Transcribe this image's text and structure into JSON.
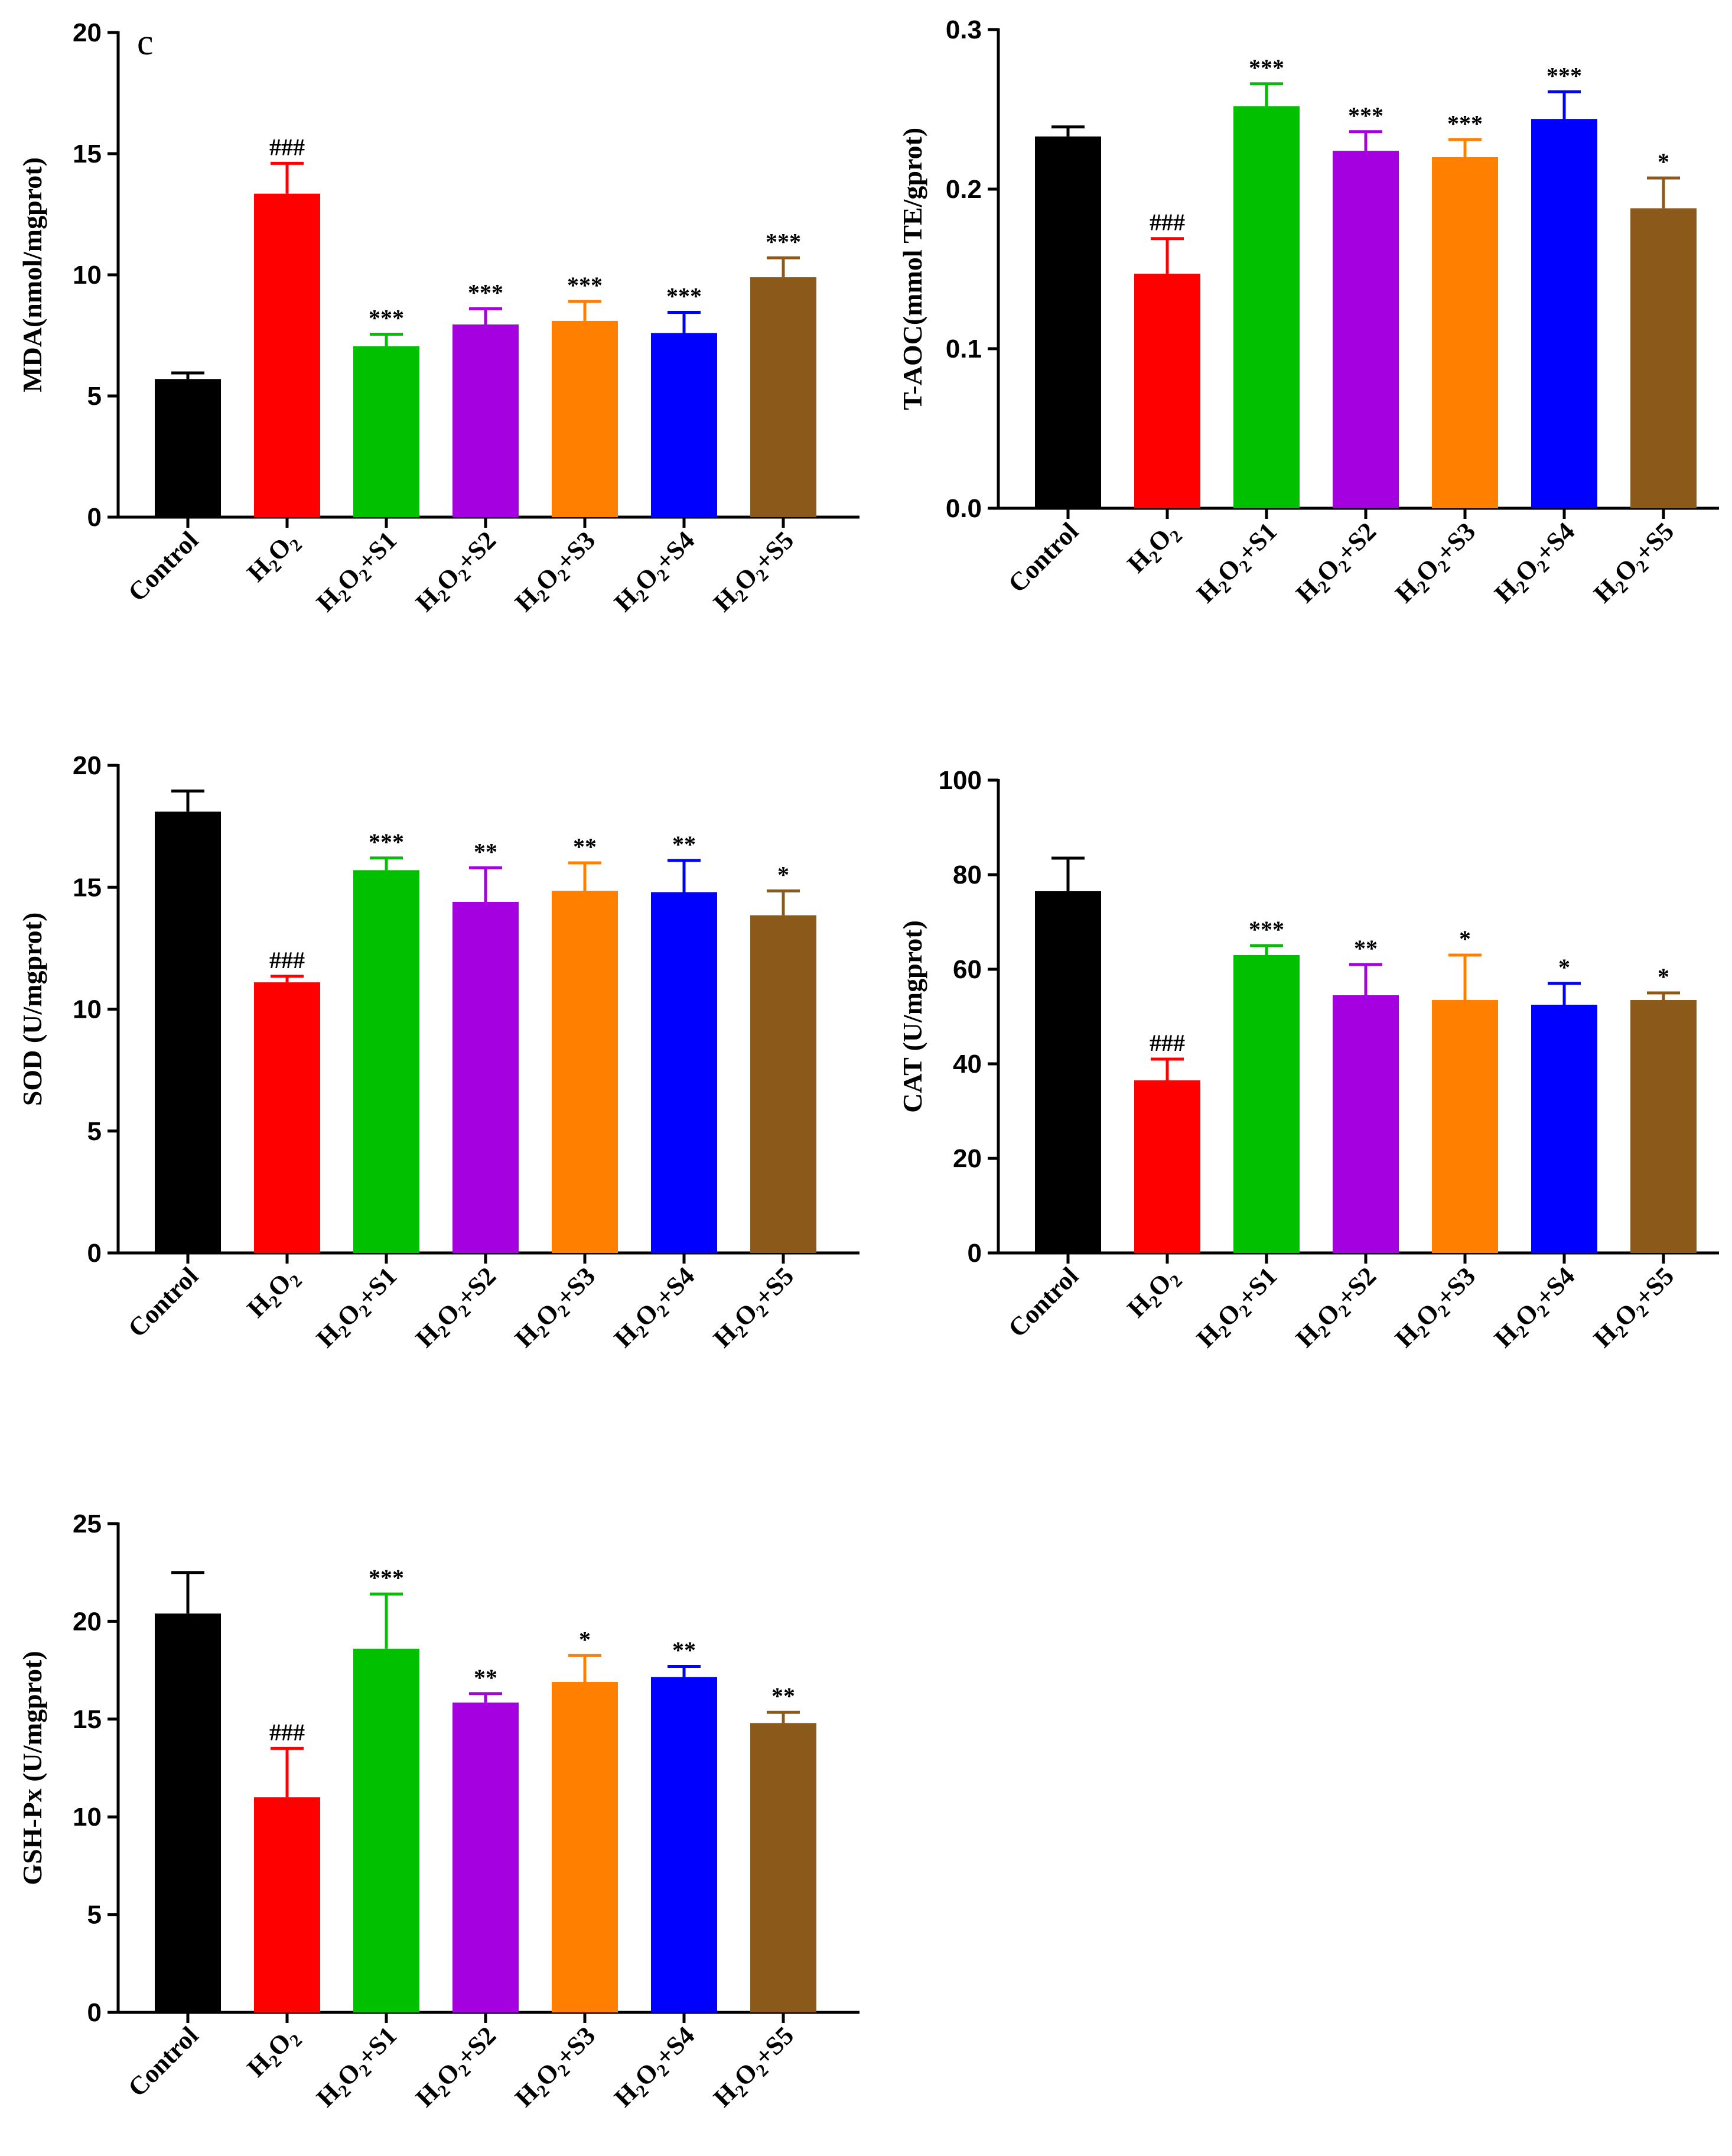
{
  "panel_label": "c",
  "chart_data": [
    {
      "type": "bar",
      "title": "",
      "ylabel": "MDA(nmol/mgprot)",
      "categories": [
        "Control",
        "H2O2",
        "H2O2+S1",
        "H2O2+S2",
        "H2O2+S3",
        "H2O2+S4",
        "H2O2+S5"
      ],
      "values": [
        5.7,
        13.35,
        7.05,
        7.95,
        8.1,
        7.6,
        9.9
      ],
      "errors": [
        0.25,
        1.25,
        0.5,
        0.65,
        0.8,
        0.85,
        0.8
      ],
      "significance": [
        "",
        "###",
        "***",
        "***",
        "***",
        "***",
        "***"
      ],
      "ylim": [
        0,
        20
      ],
      "yticks": [
        "0",
        "5",
        "10",
        "15",
        "20"
      ],
      "colors": [
        "#000000",
        "#ff0000",
        "#00c000",
        "#a400e0",
        "#ff8000",
        "#0000ff",
        "#8b5a1a"
      ]
    },
    {
      "type": "bar",
      "title": "",
      "ylabel": "T-AOC(mmol TE/gprot)",
      "categories": [
        "Control",
        "H2O2",
        "H2O2+S1",
        "H2O2+S2",
        "H2O2+S3",
        "H2O2+S4",
        "H2O2+S5"
      ],
      "values": [
        0.233,
        0.147,
        0.252,
        0.224,
        0.22,
        0.244,
        0.188
      ],
      "errors": [
        0.006,
        0.022,
        0.014,
        0.012,
        0.011,
        0.017,
        0.019
      ],
      "significance": [
        "",
        "###",
        "***",
        "***",
        "***",
        "***",
        "*"
      ],
      "ylim": [
        0,
        0.3
      ],
      "yticks": [
        "0.0",
        "0.1",
        "0.2",
        "0.3"
      ],
      "colors": [
        "#000000",
        "#ff0000",
        "#00c000",
        "#a400e0",
        "#ff8000",
        "#0000ff",
        "#8b5a1a"
      ]
    },
    {
      "type": "bar",
      "title": "",
      "ylabel": "SOD (U/mgprot)",
      "categories": [
        "Control",
        "H2O2",
        "H2O2+S1",
        "H2O2+S2",
        "H2O2+S3",
        "H2O2+S4",
        "H2O2+S5"
      ],
      "values": [
        18.1,
        11.1,
        15.7,
        14.4,
        14.85,
        14.8,
        13.85
      ],
      "errors": [
        0.85,
        0.25,
        0.5,
        1.4,
        1.15,
        1.3,
        1.0
      ],
      "significance": [
        "",
        "###",
        "***",
        "**",
        "**",
        "**",
        "*"
      ],
      "ylim": [
        0,
        20
      ],
      "yticks": [
        "0",
        "5",
        "10",
        "15",
        "20"
      ],
      "colors": [
        "#000000",
        "#ff0000",
        "#00c000",
        "#a400e0",
        "#ff8000",
        "#0000ff",
        "#8b5a1a"
      ]
    },
    {
      "type": "bar",
      "title": "",
      "ylabel": "CAT (U/mgprot)",
      "categories": [
        "Control",
        "H2O2",
        "H2O2+S1",
        "H2O2+S2",
        "H2O2+S3",
        "H2O2+S4",
        "H2O2+S5"
      ],
      "values": [
        76.5,
        36.5,
        63,
        54.5,
        53.5,
        52.5,
        53.5
      ],
      "errors": [
        7,
        4.5,
        2,
        6.5,
        9.5,
        4.5,
        1.5
      ],
      "significance": [
        "",
        "###",
        "***",
        "**",
        "*",
        "*",
        "*"
      ],
      "ylim": [
        0,
        100
      ],
      "yticks": [
        "0",
        "20",
        "40",
        "60",
        "80",
        "100"
      ],
      "colors": [
        "#000000",
        "#ff0000",
        "#00c000",
        "#a400e0",
        "#ff8000",
        "#0000ff",
        "#8b5a1a"
      ]
    },
    {
      "type": "bar",
      "title": "",
      "ylabel": "GSH-Px (U/mgprot)",
      "categories": [
        "Control",
        "H2O2",
        "H2O2+S1",
        "H2O2+S2",
        "H2O2+S3",
        "H2O2+S4",
        "H2O2+S5"
      ],
      "values": [
        20.4,
        11.0,
        18.6,
        15.85,
        16.9,
        17.15,
        14.8
      ],
      "errors": [
        2.1,
        2.5,
        2.8,
        0.45,
        1.35,
        0.55,
        0.55
      ],
      "significance": [
        "",
        "###",
        "***",
        "**",
        "*",
        "**",
        "**"
      ],
      "ylim": [
        0,
        25
      ],
      "yticks": [
        "0",
        "5",
        "10",
        "15",
        "20",
        "25"
      ],
      "colors": [
        "#000000",
        "#ff0000",
        "#00c000",
        "#a400e0",
        "#ff8000",
        "#0000ff",
        "#8b5a1a"
      ]
    }
  ]
}
